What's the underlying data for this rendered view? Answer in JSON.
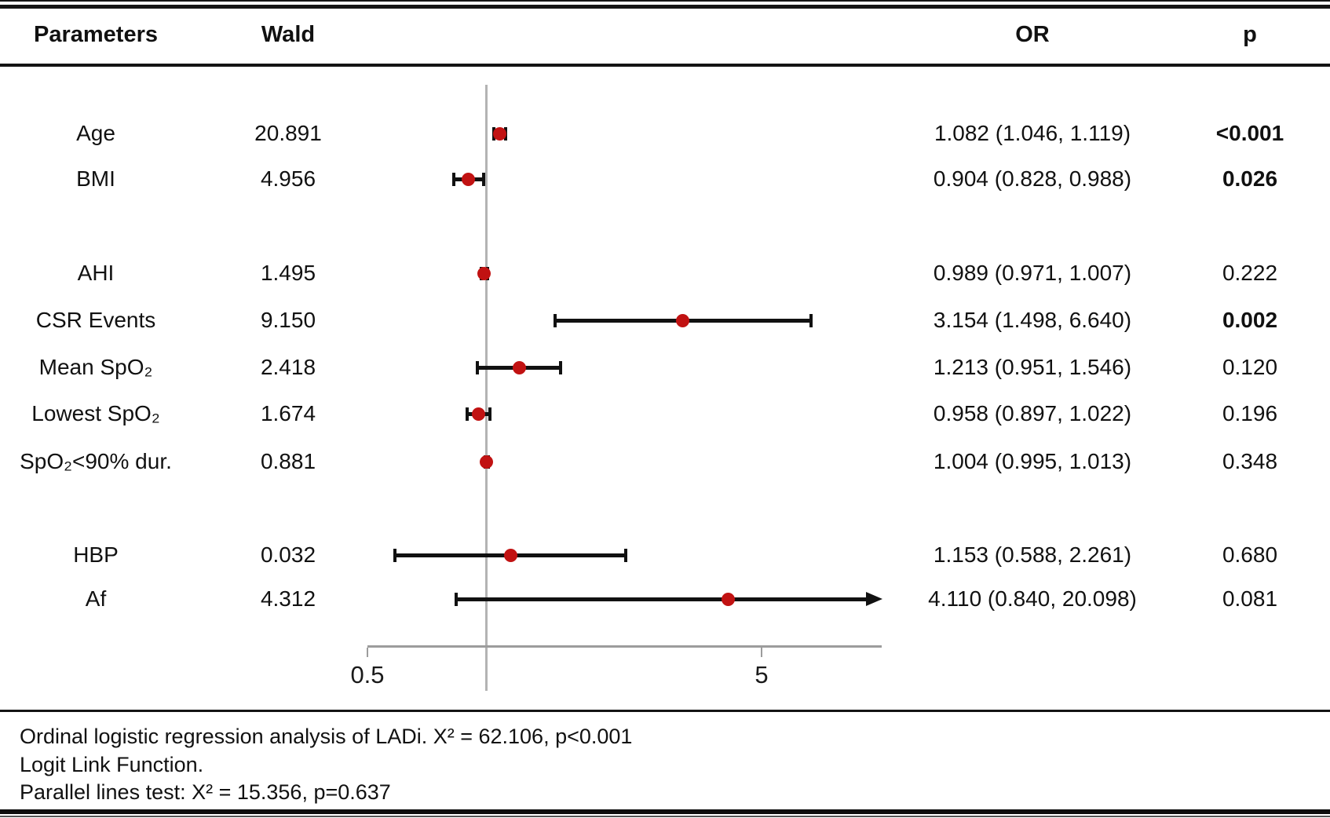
{
  "chart_data": {
    "type": "forest",
    "title": "",
    "columns": {
      "parameters": "Parameters",
      "wald": "Wald",
      "or": "OR",
      "p": "p"
    },
    "x_axis": {
      "scale": "log10",
      "range": [
        0.5,
        10
      ],
      "tick_values": [
        0.5,
        5
      ],
      "tick_labels": [
        "0.5",
        "5"
      ],
      "reference_line": 1.0
    },
    "rows": [
      {
        "param": "Age",
        "wald": "20.891",
        "or": 1.082,
        "ci": [
          1.046,
          1.119
        ],
        "or_label": "1.082 (1.046, 1.119)",
        "p": "<0.001",
        "p_bold": true,
        "clipped": false
      },
      {
        "param": "BMI",
        "wald": "4.956",
        "or": 0.904,
        "ci": [
          0.828,
          0.988
        ],
        "or_label": "0.904 (0.828, 0.988)",
        "p": "0.026",
        "p_bold": true,
        "clipped": false
      },
      {
        "param": "AHI",
        "wald": "1.495",
        "or": 0.989,
        "ci": [
          0.971,
          1.007
        ],
        "or_label": "0.989 (0.971, 1.007)",
        "p": "0.222",
        "p_bold": false,
        "clipped": false
      },
      {
        "param": "CSR Events",
        "wald": "9.150",
        "or": 3.154,
        "ci": [
          1.498,
          6.64
        ],
        "or_label": "3.154 (1.498, 6.640)",
        "p": "0.002",
        "p_bold": true,
        "clipped": false
      },
      {
        "param": "Mean SpO₂",
        "wald": "2.418",
        "or": 1.213,
        "ci": [
          0.951,
          1.546
        ],
        "or_label": "1.213 (0.951, 1.546)",
        "p": "0.120",
        "p_bold": false,
        "clipped": false
      },
      {
        "param": "Lowest SpO₂",
        "wald": "1.674",
        "or": 0.958,
        "ci": [
          0.897,
          1.022
        ],
        "or_label": "0.958 (0.897, 1.022)",
        "p": "0.196",
        "p_bold": false,
        "clipped": false
      },
      {
        "param": "SpO₂<90% dur.",
        "wald": "0.881",
        "or": 1.004,
        "ci": [
          0.995,
          1.013
        ],
        "or_label": "1.004 (0.995, 1.013)",
        "p": "0.348",
        "p_bold": false,
        "clipped": false
      },
      {
        "param": "HBP",
        "wald": "0.032",
        "or": 1.153,
        "ci": [
          0.588,
          2.261
        ],
        "or_label": "1.153 (0.588, 2.261)",
        "p": "0.680",
        "p_bold": false,
        "clipped": false
      },
      {
        "param": "Af",
        "wald": "4.312",
        "or": 4.11,
        "ci": [
          0.84,
          20.098
        ],
        "or_label": "4.110 (0.840, 20.098)",
        "p": "0.081",
        "p_bold": false,
        "clipped": true
      }
    ],
    "legend_position": "none",
    "grid": false
  },
  "colors": {
    "marker": "#c11212",
    "ci_line": "#111111",
    "reference_line": "#b3b3b3",
    "axis_line": "#9c9c9c",
    "text": "#111111"
  },
  "footnotes": [
    "Ordinal logistic regression analysis of LADi. X² = 62.106, p<0.001",
    "Logit Link Function.",
    "Parallel lines test: X² = 15.356, p=0.637"
  ]
}
